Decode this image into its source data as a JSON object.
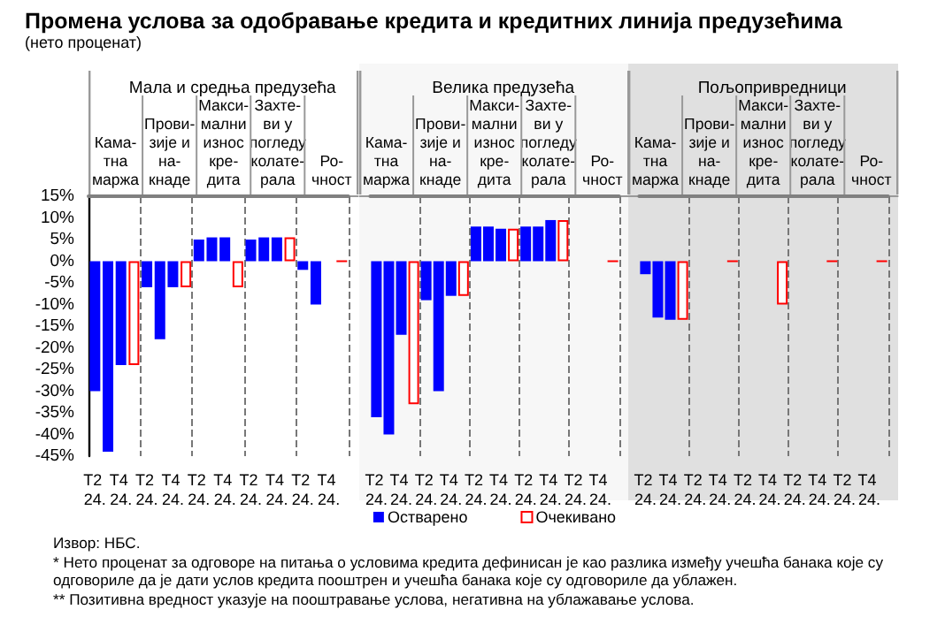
{
  "chart_data": [
    {
      "type": "other",
      "title": "Промена услова за одобравање кредита и кредитних линија предузећима",
      "subtitle": "(нето проценат)"
    },
    {
      "type": "bar",
      "title": "Мала и средња предузећа",
      "categories": [
        "T2 24.",
        null,
        "T4 24.",
        null,
        "T2 24.",
        null,
        "T4 24.",
        null,
        "T2 24.",
        null,
        "T4 24.",
        null,
        "T2 24.",
        null,
        "T4 24.",
        null,
        "T2 24.",
        null,
        "T4 24.",
        null
      ],
      "annotations": [
        "Кама-тна маржа",
        "Прови-зије и на-кнаде",
        "Макси-мални износ кре-дита",
        "Захте-ви у погледу колате-рала",
        "Ро-чност"
      ],
      "series": [
        {
          "color": "#0000ff",
          "values": [
            -30,
            -44,
            -24,
            null,
            -6,
            -18,
            -6,
            null,
            5,
            5.5,
            5.5,
            null,
            5,
            5.5,
            5.5,
            null,
            -2,
            -10,
            0,
            null
          ]
        },
        {
          "color": "#ff0000",
          "values": [
            null,
            null,
            null,
            -24,
            null,
            null,
            null,
            -6,
            null,
            null,
            null,
            -6,
            null,
            null,
            null,
            5.5,
            null,
            null,
            null,
            0
          ]
        }
      ],
      "ylim": [
        -45,
        15
      ],
      "yticks": [
        {
          "value": -45,
          "label": "-45%"
        },
        {
          "value": -40,
          "label": "-40%"
        },
        {
          "value": -35,
          "label": "-35%"
        },
        {
          "value": -30,
          "label": "-30%"
        },
        {
          "value": -25,
          "label": "-25%"
        },
        {
          "value": -20,
          "label": "-20%"
        },
        {
          "value": -15,
          "label": "-15%"
        },
        {
          "value": -10,
          "label": "-10%"
        },
        {
          "value": -5,
          "label": "-5%"
        },
        {
          "value": 0,
          "label": "0%"
        },
        {
          "value": 5,
          "label": "5%"
        },
        {
          "value": 10,
          "label": "10%"
        },
        {
          "value": 15,
          "label": "15%"
        }
      ],
      "grid": "x"
    },
    {
      "type": "bar",
      "title": "Велика предузећа",
      "categories": [
        "T2 24.",
        null,
        "T4 24.",
        null,
        "T2 24.",
        null,
        "T4 24.",
        null,
        "T2 24.",
        null,
        "T4 24.",
        null,
        "T2 24.",
        null,
        "T4 24.",
        null,
        "T2 24.",
        null,
        "T4 24.",
        null
      ],
      "annotations": [
        "Кама-тна маржа",
        "Прови-зије и на-кнаде",
        "Макси-мални износ кре-дита",
        "Захте-ви у погледу колате-рала",
        "Ро-чност"
      ],
      "series": [
        {
          "name": "Остварено",
          "color": "#0000ff",
          "values": [
            -36,
            -40,
            -17,
            null,
            -9,
            -30,
            -8,
            null,
            8,
            8,
            7.5,
            null,
            8,
            8,
            9.5,
            null,
            0,
            0,
            0,
            null
          ]
        },
        {
          "name": "Очекивано",
          "color": "#ff0000",
          "values": [
            null,
            null,
            null,
            -33,
            null,
            null,
            null,
            -8,
            null,
            null,
            null,
            7.5,
            null,
            null,
            null,
            9.5,
            null,
            null,
            null,
            0
          ]
        }
      ],
      "ylim": [
        -45,
        15
      ],
      "yticks": [
        {
          "value": -45,
          "label": "-45%"
        },
        {
          "value": -40,
          "label": "-40%"
        },
        {
          "value": -35,
          "label": "-35%"
        },
        {
          "value": -30,
          "label": "-30%"
        },
        {
          "value": -25,
          "label": "-25%"
        },
        {
          "value": -20,
          "label": "-20%"
        },
        {
          "value": -15,
          "label": "-15%"
        },
        {
          "value": -10,
          "label": "-10%"
        },
        {
          "value": -5,
          "label": "-5%"
        },
        {
          "value": 0,
          "label": "0%"
        },
        {
          "value": 5,
          "label": "5%"
        },
        {
          "value": 10,
          "label": "10%"
        },
        {
          "value": 15,
          "label": "15%"
        }
      ],
      "grid": "x",
      "tick_labels": "x",
      "legend": "bottom"
    },
    {
      "type": "bar",
      "title": "Пољопривредници",
      "categories": [
        "T2 24.",
        null,
        "T4 24.",
        null,
        "T2 24.",
        null,
        "T4 24.",
        null,
        "T2 24.",
        null,
        "T4 24.",
        null,
        "T2 24.",
        null,
        "T4 24.",
        null,
        "T2 24.",
        null,
        "T4 24.",
        null
      ],
      "annotations": [
        "Кама-тна маржа",
        "Прови-зије и на-кнаде",
        "Макси-мални износ кре-дита",
        "Захте-ви у погледу колате-рала",
        "Ро-чност"
      ],
      "series": [
        {
          "color": "#0000ff",
          "values": [
            -3,
            -13,
            -13.5,
            null,
            0,
            0,
            0,
            null,
            0,
            0,
            0,
            null,
            0,
            0,
            0,
            null,
            0,
            0,
            0,
            null
          ]
        },
        {
          "color": "#ff0000",
          "values": [
            null,
            null,
            null,
            -13.5,
            null,
            null,
            null,
            0,
            null,
            null,
            null,
            -10,
            null,
            null,
            null,
            0,
            null,
            null,
            null,
            0
          ]
        }
      ],
      "ylim": [
        -45,
        15
      ],
      "yticks": [
        {
          "value": -45,
          "label": "-45%"
        },
        {
          "value": -40,
          "label": "-40%"
        },
        {
          "value": -35,
          "label": "-35%"
        },
        {
          "value": -30,
          "label": "-30%"
        },
        {
          "value": -25,
          "label": "-25%"
        },
        {
          "value": -20,
          "label": "-20%"
        },
        {
          "value": -15,
          "label": "-15%"
        },
        {
          "value": -10,
          "label": "-10%"
        },
        {
          "value": -5,
          "label": "-5%"
        },
        {
          "value": 0,
          "label": "0%"
        },
        {
          "value": 5,
          "label": "5%"
        },
        {
          "value": 10,
          "label": "10%"
        },
        {
          "value": 15,
          "label": "15%"
        }
      ],
      "grid": "x",
      "tick_labels": "x"
    },
    {
      "type": "other",
      "annotations": [
        "Извор: НБС.",
        "* Нето проценат за одговоре на питања о условима кредита дефинисан је као разлика између учешћа банака које су одговориле да је дати услов кредита пооштрен и учешћа банака које су одговориле да ублажен.",
        "** Позитивна вредност указује на пооштравање услова, негативна на ублажавање услова."
      ]
    }
  ]
}
